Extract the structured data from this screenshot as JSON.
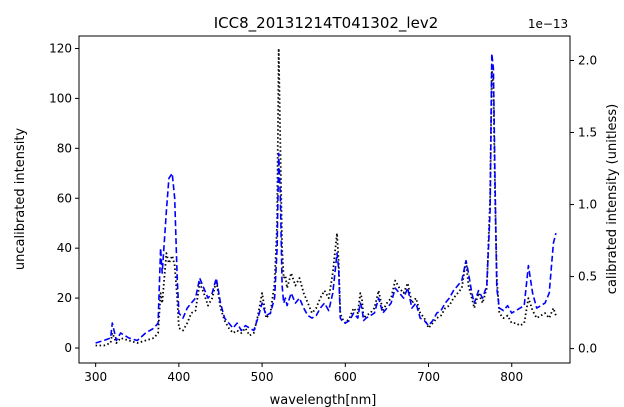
{
  "chart_data": {
    "type": "line",
    "title": "ICC8_20131214T041302_lev2",
    "xlabel": "wavelength[nm]",
    "ylabel": "uncalibrated intensity",
    "y2label": "calibrated intensity (unitless)",
    "y2_offset_text": "1e−13",
    "xlim": [
      280,
      870
    ],
    "ylim": [
      -6,
      125
    ],
    "y2lim": [
      -0.1,
      2.17
    ],
    "xticks": [
      300,
      400,
      500,
      600,
      700,
      800
    ],
    "yticks": [
      0,
      20,
      40,
      60,
      80,
      100,
      120
    ],
    "y2ticks": [
      0.0,
      0.5,
      1.0,
      1.5,
      2.0
    ],
    "y2ticklabels": [
      "0.0",
      "0.5",
      "1.0",
      "1.5",
      "2.0"
    ],
    "grid": false,
    "series": [
      {
        "axis": "left",
        "style": "dotted",
        "color": "#000000",
        "x": [
          300,
          310,
          318,
          320,
          325,
          330,
          340,
          350,
          360,
          370,
          375,
          378,
          380,
          385,
          388,
          392,
          395,
          398,
          400,
          405,
          410,
          415,
          420,
          425,
          430,
          435,
          440,
          445,
          450,
          455,
          460,
          465,
          470,
          475,
          480,
          485,
          490,
          495,
          500,
          505,
          510,
          515,
          518,
          520,
          522,
          524,
          526,
          528,
          530,
          535,
          540,
          545,
          550,
          555,
          560,
          565,
          570,
          575,
          580,
          585,
          590,
          592,
          594,
          596,
          600,
          605,
          610,
          615,
          618,
          620,
          622,
          625,
          630,
          635,
          640,
          645,
          650,
          655,
          660,
          665,
          670,
          675,
          680,
          685,
          690,
          695,
          700,
          705,
          710,
          715,
          720,
          725,
          730,
          735,
          740,
          745,
          748,
          752,
          755,
          760,
          765,
          770,
          774,
          776,
          778,
          780,
          782,
          785,
          790,
          795,
          800,
          805,
          810,
          815,
          820,
          825,
          830,
          835,
          840,
          845,
          850,
          853
        ],
        "y": [
          1,
          1,
          2,
          6,
          2,
          4,
          3,
          2,
          3,
          4,
          6,
          22,
          18,
          38,
          34,
          37,
          33,
          20,
          8,
          7,
          10,
          14,
          15,
          26,
          22,
          17,
          20,
          27,
          16,
          11,
          8,
          6,
          7,
          6,
          8,
          5,
          6,
          13,
          22,
          12,
          14,
          26,
          50,
          120,
          80,
          40,
          28,
          29,
          24,
          30,
          25,
          28,
          22,
          18,
          14,
          16,
          20,
          23,
          20,
          30,
          46,
          35,
          14,
          12,
          10,
          12,
          16,
          14,
          22,
          20,
          12,
          13,
          14,
          16,
          23,
          15,
          18,
          20,
          27,
          24,
          22,
          26,
          18,
          20,
          14,
          12,
          8,
          10,
          12,
          13,
          16,
          17,
          20,
          22,
          24,
          35,
          25,
          20,
          16,
          22,
          18,
          24,
          60,
          112,
          105,
          60,
          28,
          14,
          12,
          13,
          10,
          10,
          9,
          10,
          20,
          15,
          12,
          13,
          14,
          12,
          16,
          13
        ]
      },
      {
        "axis": "left",
        "style": "dashed",
        "color": "#0000ff",
        "x": [
          300,
          310,
          318,
          320,
          325,
          330,
          340,
          350,
          360,
          370,
          375,
          378,
          380,
          385,
          388,
          392,
          395,
          398,
          400,
          405,
          410,
          415,
          420,
          425,
          430,
          435,
          440,
          445,
          450,
          455,
          460,
          465,
          470,
          475,
          480,
          485,
          490,
          495,
          500,
          505,
          510,
          515,
          518,
          520,
          522,
          524,
          526,
          528,
          530,
          535,
          540,
          545,
          550,
          555,
          560,
          565,
          570,
          575,
          580,
          585,
          590,
          592,
          594,
          596,
          600,
          605,
          610,
          615,
          618,
          620,
          622,
          625,
          630,
          635,
          640,
          645,
          650,
          655,
          660,
          665,
          670,
          675,
          680,
          685,
          690,
          695,
          700,
          705,
          710,
          715,
          720,
          725,
          730,
          735,
          740,
          745,
          748,
          752,
          755,
          760,
          765,
          770,
          774,
          776,
          778,
          780,
          782,
          785,
          790,
          795,
          800,
          805,
          810,
          815,
          820,
          825,
          830,
          835,
          840,
          845,
          850,
          853
        ],
        "y": [
          2,
          3,
          4,
          10,
          3,
          6,
          4,
          3,
          6,
          8,
          10,
          40,
          30,
          55,
          68,
          70,
          60,
          28,
          14,
          12,
          16,
          18,
          20,
          28,
          24,
          20,
          22,
          28,
          18,
          12,
          10,
          8,
          10,
          7,
          9,
          8,
          7,
          12,
          18,
          13,
          14,
          20,
          40,
          78,
          60,
          25,
          18,
          20,
          17,
          22,
          18,
          20,
          16,
          13,
          12,
          13,
          16,
          18,
          15,
          22,
          38,
          32,
          12,
          11,
          10,
          11,
          14,
          12,
          18,
          16,
          11,
          12,
          13,
          14,
          20,
          14,
          16,
          18,
          24,
          22,
          20,
          24,
          16,
          18,
          12,
          11,
          9,
          11,
          14,
          15,
          18,
          20,
          23,
          25,
          27,
          35,
          30,
          22,
          18,
          23,
          20,
          25,
          55,
          118,
          112,
          65,
          24,
          16,
          15,
          17,
          14,
          15,
          16,
          17,
          33,
          22,
          16,
          17,
          18,
          22,
          42,
          46
        ]
      }
    ]
  }
}
